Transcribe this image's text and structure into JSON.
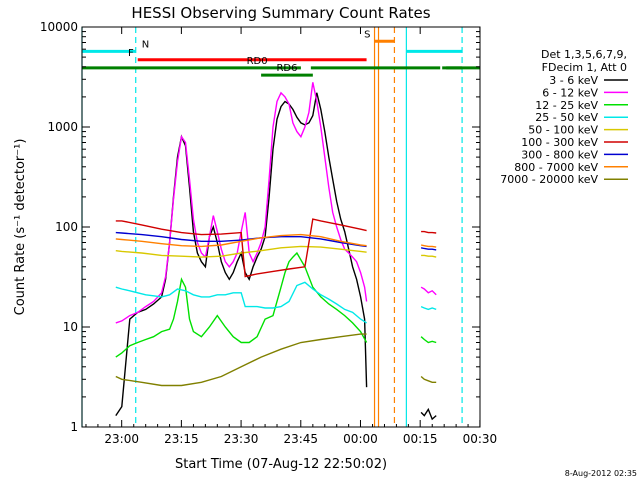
{
  "chart_data": {
    "type": "line",
    "title": "HESSI Observing Summary Count Rates",
    "xlabel": "Start Time (07-Aug-12 22:50:02)",
    "ylabel": "Count Rate (s⁻¹ detector⁻¹)",
    "yscale": "log",
    "ylim": [
      1,
      10000
    ],
    "xlim_minutes_after_start": [
      0,
      100
    ],
    "x_unit": "minutes after start time",
    "xticks": [
      {
        "label": "23:00",
        "value": 9.97
      },
      {
        "label": "23:15",
        "value": 24.97
      },
      {
        "label": "23:30",
        "value": 39.97
      },
      {
        "label": "23:45",
        "value": 54.97
      },
      {
        "label": "00:00",
        "value": 69.97
      },
      {
        "label": "00:15",
        "value": 84.97
      },
      {
        "label": "00:30",
        "value": 99.97
      }
    ],
    "yticks": [
      {
        "label": "1",
        "value": 1
      },
      {
        "label": "10",
        "value": 10
      },
      {
        "label": "100",
        "value": 100
      },
      {
        "label": "1000",
        "value": 1000
      },
      {
        "label": "10000",
        "value": 10000
      }
    ],
    "legend": {
      "placement": "right",
      "header": [
        "Det 1,3,5,6,7,9,",
        "FDecim 1, Att 0"
      ],
      "entries": [
        {
          "label": "3 - 6 keV",
          "color": "#000000"
        },
        {
          "label": "6 - 12 keV",
          "color": "#ff00ff"
        },
        {
          "label": "12 - 25 keV",
          "color": "#00e000"
        },
        {
          "label": "25 - 50 keV",
          "color": "#00e8e8"
        },
        {
          "label": "50 - 100 keV",
          "color": "#d8c800"
        },
        {
          "label": "100 - 300 keV",
          "color": "#d00000"
        },
        {
          "label": "300 - 800 keV",
          "color": "#0000d0"
        },
        {
          "label": "800 - 7000 keV",
          "color": "#ff8000"
        },
        {
          "label": "7000 - 20000 keV",
          "color": "#808000"
        }
      ]
    },
    "series": [
      {
        "name": "3 - 6 keV",
        "color": "#000000",
        "x": [
          8.5,
          10,
          12,
          14,
          16,
          18,
          20,
          21,
          22,
          23,
          24,
          25,
          26,
          27,
          28,
          29,
          30,
          31,
          32,
          33,
          34,
          35,
          36,
          37,
          38,
          39,
          40,
          41,
          42,
          43,
          44,
          45,
          46,
          47,
          48,
          49,
          50,
          51,
          52,
          53,
          54,
          55,
          56,
          57,
          58,
          59,
          60,
          61,
          62,
          63,
          64,
          65,
          66,
          67,
          68,
          69,
          70,
          71,
          71.5
        ],
        "y": [
          1.3,
          1.6,
          12,
          14,
          15,
          17,
          20,
          30,
          70,
          200,
          500,
          800,
          650,
          250,
          90,
          55,
          45,
          40,
          80,
          100,
          70,
          45,
          35,
          30,
          35,
          45,
          55,
          35,
          30,
          40,
          50,
          60,
          80,
          200,
          600,
          1200,
          1600,
          1800,
          1700,
          1500,
          1250,
          1100,
          1050,
          1100,
          1300,
          2200,
          1500,
          900,
          500,
          300,
          180,
          120,
          90,
          60,
          40,
          30,
          20,
          12,
          2.5
        ]
      },
      {
        "name": "6 - 12 keV",
        "color": "#ff00ff",
        "x": [
          8.5,
          10,
          12,
          14,
          16,
          18,
          20,
          21,
          22,
          23,
          24,
          25,
          26,
          27,
          28,
          29,
          30,
          31,
          32,
          33,
          34,
          35,
          36,
          37,
          38,
          39,
          40,
          41,
          42,
          43,
          44,
          45,
          46,
          47,
          48,
          49,
          50,
          51,
          52,
          53,
          54,
          55,
          56,
          57,
          58,
          59,
          60,
          61,
          62,
          63,
          64,
          65,
          66,
          67,
          68,
          69,
          70,
          71,
          71.5
        ],
        "y": [
          11,
          11.5,
          13,
          14,
          16,
          18,
          22,
          32,
          70,
          190,
          450,
          800,
          700,
          300,
          120,
          70,
          55,
          50,
          80,
          130,
          90,
          60,
          45,
          40,
          45,
          55,
          90,
          140,
          55,
          45,
          55,
          70,
          100,
          300,
          1000,
          1800,
          2200,
          2000,
          1700,
          1100,
          900,
          800,
          1000,
          1400,
          2800,
          1800,
          1000,
          500,
          250,
          140,
          100,
          75,
          60,
          55,
          50,
          45,
          35,
          25,
          18
        ]
      },
      {
        "name": "12 - 25 keV",
        "color": "#00e000",
        "x": [
          8.5,
          10,
          12,
          14,
          16,
          18,
          20,
          22,
          23,
          24,
          25,
          26,
          27,
          28,
          30,
          32,
          34,
          36,
          38,
          40,
          42,
          44,
          46,
          48,
          50,
          51,
          52,
          53,
          54,
          56,
          58,
          60,
          62,
          64,
          66,
          68,
          70,
          71.5
        ],
        "y": [
          5,
          5.5,
          6.5,
          7,
          7.5,
          8,
          9,
          9.5,
          12,
          18,
          30,
          25,
          12,
          9,
          8,
          10,
          13,
          10,
          8,
          7,
          7,
          8,
          12,
          13,
          25,
          35,
          45,
          50,
          55,
          40,
          25,
          20,
          17,
          15,
          13,
          11,
          9,
          7
        ]
      },
      {
        "name": "25 - 50 keV",
        "color": "#00e8e8",
        "x": [
          8.5,
          10,
          12,
          14,
          16,
          18,
          20,
          22,
          24,
          26,
          28,
          30,
          32,
          34,
          36,
          38,
          40,
          41,
          42,
          44,
          46,
          48,
          50,
          52,
          54,
          56,
          58,
          60,
          62,
          64,
          66,
          68,
          70,
          71.5
        ],
        "y": [
          25,
          24,
          23,
          22,
          21,
          20.5,
          20,
          21,
          24,
          23,
          21,
          20,
          20,
          21,
          21,
          22,
          22,
          16,
          16,
          16,
          15.5,
          15.5,
          16,
          18,
          26,
          28,
          24,
          21,
          19,
          17,
          15,
          14,
          12,
          11
        ]
      },
      {
        "name": "50 - 100 keV",
        "color": "#d8c800",
        "x": [
          8.5,
          10,
          15,
          20,
          25,
          30,
          35,
          40,
          45,
          50,
          55,
          60,
          65,
          70,
          71.5
        ],
        "y": [
          58,
          57,
          55,
          52,
          51,
          50,
          51,
          55,
          58,
          62,
          64,
          63,
          60,
          57,
          56
        ]
      },
      {
        "name": "100 - 300 keV",
        "color": "#d00000",
        "x": [
          8.5,
          10,
          15,
          20,
          25,
          30,
          35,
          40,
          41,
          44,
          48,
          52,
          56,
          58,
          60,
          65,
          70,
          71.5
        ],
        "y": [
          115,
          115,
          105,
          95,
          88,
          84,
          85,
          88,
          32,
          34,
          36,
          38,
          40,
          120,
          115,
          105,
          95,
          92
        ]
      },
      {
        "name": "300 - 800 keV",
        "color": "#0000d0",
        "x": [
          8.5,
          10,
          15,
          20,
          25,
          30,
          35,
          40,
          45,
          50,
          55,
          60,
          65,
          70,
          71.5
        ],
        "y": [
          88,
          87,
          84,
          80,
          75,
          72,
          72,
          74,
          78,
          80,
          80,
          76,
          70,
          65,
          64
        ]
      },
      {
        "name": "800 - 7000 keV",
        "color": "#ff8000",
        "x": [
          8.5,
          10,
          15,
          20,
          25,
          30,
          35,
          40,
          45,
          50,
          55,
          60,
          65,
          70,
          71.5
        ],
        "y": [
          76,
          75,
          72,
          68,
          65,
          64,
          66,
          72,
          78,
          82,
          84,
          80,
          72,
          66,
          65
        ]
      },
      {
        "name": "7000 - 20000 keV",
        "color": "#808000",
        "x": [
          8.5,
          10,
          15,
          20,
          25,
          30,
          35,
          40,
          45,
          50,
          55,
          60,
          65,
          70,
          71.5
        ],
        "y": [
          3.2,
          3.0,
          2.8,
          2.6,
          2.6,
          2.8,
          3.2,
          4.0,
          5.0,
          6.0,
          7.0,
          7.5,
          8.0,
          8.5,
          8.5
        ]
      }
    ],
    "after_gap_series": {
      "x": [
        85.2,
        86,
        87,
        88,
        89
      ],
      "3 - 6 keV": [
        1.4,
        1.3,
        1.5,
        1.2,
        1.3
      ],
      "6 - 12 keV": [
        25,
        24,
        22,
        23,
        21
      ],
      "12 - 25 keV": [
        8,
        7.5,
        7,
        7.2,
        7
      ],
      "25 - 50 keV": [
        16,
        15.5,
        15,
        15.5,
        15
      ],
      "50 - 100 keV": [
        52,
        52,
        51,
        51,
        50
      ],
      "100 - 300 keV": [
        90,
        90,
        88,
        88,
        87
      ],
      "300 - 800 keV": [
        62,
        61,
        60,
        60,
        59
      ],
      "800 - 7000 keV": [
        66,
        65,
        64,
        64,
        63
      ],
      "7000 - 20000 keV": [
        3.2,
        3.0,
        2.9,
        2.8,
        2.8
      ]
    },
    "flags": [
      {
        "label": "N",
        "color": "#00e8e8",
        "level": 5700,
        "segments": [
          [
            0,
            13.5
          ],
          [
            81.5,
            95.5
          ]
        ],
        "boundaries": [
          0,
          13.5,
          81.5,
          95.5
        ]
      },
      {
        "label": "F",
        "color": "#ff0000",
        "level": 4700,
        "segments": [
          [
            14,
            71.5
          ]
        ]
      },
      {
        "label": "S",
        "color": "#ff8000",
        "level": 7200,
        "segments": [
          [
            73.5,
            78.5
          ]
        ],
        "boundaries": [
          73.5,
          74.5,
          78.5
        ]
      },
      {
        "label": "RD0",
        "color": "#008000",
        "level": 3900,
        "segments": [
          [
            0,
            55
          ],
          [
            57.5,
            90
          ],
          [
            90.5,
            95.5
          ],
          [
            91.5,
            100
          ]
        ]
      },
      {
        "label": "RD6",
        "color": "#008000",
        "level": 3300,
        "segments": [
          [
            45,
            58
          ]
        ]
      }
    ],
    "grid": false
  },
  "footer": {
    "timestamp": "8-Aug-2012 02:35"
  }
}
